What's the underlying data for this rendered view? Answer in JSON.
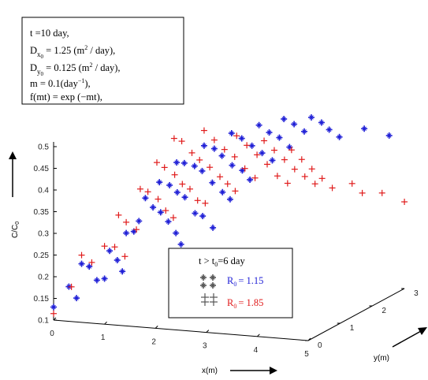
{
  "chart_data": {
    "type": "scatter",
    "projection": "3d",
    "xlabel": "x(m)",
    "ylabel": "y(m)",
    "zlabel": "C/C",
    "zlabel_sub": "0",
    "xlim": [
      0,
      5
    ],
    "ylim": [
      0,
      3
    ],
    "zlim": [
      0.1,
      0.5
    ],
    "xticks": [
      "0",
      "1",
      "2",
      "3",
      "4",
      "5"
    ],
    "yticks": [
      "0",
      "1",
      "2",
      "3"
    ],
    "zticks": [
      "0.1",
      "0.15",
      "0.2",
      "0.25",
      "0.3",
      "0.35",
      "0.4",
      "0.45",
      "0.5"
    ],
    "params": {
      "t": "t =10 day,",
      "dx_pre": "D",
      "dx_sub": "x",
      "dx_sub2": "0",
      "dx_val": " = 1.25  (m",
      "dx_sup": "2",
      "dx_end": " / day),",
      "dy_pre": "D",
      "dy_sub": "y",
      "dy_sub2": "0",
      "dy_val": " = 0.125  (m",
      "dy_sup": "2",
      "dy_end": " / day),",
      "m_pre": "m = 0.1(day",
      "m_sup": "−1",
      "m_end": "),",
      "f": "f(mt) = exp (−mt),"
    },
    "legend": {
      "title": "t > t",
      "title_sub": "0",
      "title_end": "=6 day",
      "entries": [
        {
          "label": "R",
          "sub": "0",
          "value": "= 1.15",
          "color": "#1f1fd6",
          "marker": "star"
        },
        {
          "label": "R",
          "sub": "0",
          "value": "= 1.85",
          "color": "#e01b1b",
          "marker": "plus"
        }
      ]
    },
    "series": [
      {
        "name": "R0 = 1.15",
        "color": "#1f1fd6",
        "marker": "star",
        "points": [
          {
            "x": 0.0,
            "y": 0.0,
            "z": 0.13
          },
          {
            "x": 0.3,
            "y": 0.0,
            "z": 0.18
          },
          {
            "x": 0.45,
            "y": 0.0,
            "z": 0.155
          },
          {
            "x": 0.55,
            "y": 0.0,
            "z": 0.235
          },
          {
            "x": 0.7,
            "y": 0.0,
            "z": 0.23
          },
          {
            "x": 0.85,
            "y": 0.0,
            "z": 0.2
          },
          {
            "x": 1.0,
            "y": 0.0,
            "z": 0.205
          },
          {
            "x": 1.1,
            "y": 0.0,
            "z": 0.27
          },
          {
            "x": 1.25,
            "y": 0.0,
            "z": 0.25
          },
          {
            "x": 1.35,
            "y": 0.0,
            "z": 0.225
          },
          {
            "x": 1.3,
            "y": 0.2,
            "z": 0.305
          },
          {
            "x": 1.45,
            "y": 0.2,
            "z": 0.31
          },
          {
            "x": 1.55,
            "y": 0.2,
            "z": 0.335
          },
          {
            "x": 1.55,
            "y": 0.4,
            "z": 0.38
          },
          {
            "x": 1.7,
            "y": 0.4,
            "z": 0.36
          },
          {
            "x": 1.85,
            "y": 0.4,
            "z": 0.35
          },
          {
            "x": 2.0,
            "y": 0.4,
            "z": 0.33
          },
          {
            "x": 2.15,
            "y": 0.4,
            "z": 0.305
          },
          {
            "x": 2.25,
            "y": 0.4,
            "z": 0.28
          },
          {
            "x": 1.7,
            "y": 0.6,
            "z": 0.41
          },
          {
            "x": 1.9,
            "y": 0.6,
            "z": 0.405
          },
          {
            "x": 2.05,
            "y": 0.6,
            "z": 0.39
          },
          {
            "x": 2.2,
            "y": 0.6,
            "z": 0.38
          },
          {
            "x": 2.4,
            "y": 0.6,
            "z": 0.345
          },
          {
            "x": 2.55,
            "y": 0.6,
            "z": 0.34
          },
          {
            "x": 2.75,
            "y": 0.6,
            "z": 0.315
          },
          {
            "x": 1.85,
            "y": 0.9,
            "z": 0.445
          },
          {
            "x": 2.0,
            "y": 0.9,
            "z": 0.445
          },
          {
            "x": 2.2,
            "y": 0.9,
            "z": 0.44
          },
          {
            "x": 2.35,
            "y": 0.9,
            "z": 0.43
          },
          {
            "x": 2.55,
            "y": 0.9,
            "z": 0.405
          },
          {
            "x": 2.75,
            "y": 0.9,
            "z": 0.385
          },
          {
            "x": 2.9,
            "y": 0.9,
            "z": 0.37
          },
          {
            "x": 2.2,
            "y": 1.2,
            "z": 0.475
          },
          {
            "x": 2.4,
            "y": 1.2,
            "z": 0.47
          },
          {
            "x": 2.55,
            "y": 1.2,
            "z": 0.455
          },
          {
            "x": 2.75,
            "y": 1.2,
            "z": 0.435
          },
          {
            "x": 2.95,
            "y": 1.2,
            "z": 0.425
          },
          {
            "x": 3.1,
            "y": 1.2,
            "z": 0.405
          },
          {
            "x": 2.55,
            "y": 1.5,
            "z": 0.495
          },
          {
            "x": 2.75,
            "y": 1.5,
            "z": 0.485
          },
          {
            "x": 2.95,
            "y": 1.5,
            "z": 0.47
          },
          {
            "x": 3.15,
            "y": 1.5,
            "z": 0.455
          },
          {
            "x": 3.35,
            "y": 1.5,
            "z": 0.44
          },
          {
            "x": 2.9,
            "y": 1.8,
            "z": 0.505
          },
          {
            "x": 3.1,
            "y": 1.8,
            "z": 0.49
          },
          {
            "x": 3.3,
            "y": 1.8,
            "z": 0.48
          },
          {
            "x": 3.5,
            "y": 1.8,
            "z": 0.46
          },
          {
            "x": 3.2,
            "y": 2.1,
            "z": 0.51
          },
          {
            "x": 3.4,
            "y": 2.1,
            "z": 0.5
          },
          {
            "x": 3.6,
            "y": 2.1,
            "z": 0.485
          },
          {
            "x": 3.55,
            "y": 2.4,
            "z": 0.505
          },
          {
            "x": 3.75,
            "y": 2.4,
            "z": 0.495
          },
          {
            "x": 3.9,
            "y": 2.4,
            "z": 0.48
          },
          {
            "x": 4.1,
            "y": 2.4,
            "z": 0.465
          },
          {
            "x": 4.4,
            "y": 2.7,
            "z": 0.475
          },
          {
            "x": 4.7,
            "y": 3.0,
            "z": 0.45
          }
        ]
      },
      {
        "name": "R0 = 1.85",
        "color": "#e01b1b",
        "marker": "plus",
        "points": [
          {
            "x": 0.0,
            "y": 0.0,
            "z": 0.115
          },
          {
            "x": 0.35,
            "y": 0.0,
            "z": 0.18
          },
          {
            "x": 0.55,
            "y": 0.0,
            "z": 0.255
          },
          {
            "x": 0.75,
            "y": 0.0,
            "z": 0.24
          },
          {
            "x": 1.0,
            "y": 0.0,
            "z": 0.28
          },
          {
            "x": 1.2,
            "y": 0.0,
            "z": 0.28
          },
          {
            "x": 1.4,
            "y": 0.0,
            "z": 0.26
          },
          {
            "x": 1.15,
            "y": 0.2,
            "z": 0.345
          },
          {
            "x": 1.3,
            "y": 0.2,
            "z": 0.33
          },
          {
            "x": 1.5,
            "y": 0.2,
            "z": 0.315
          },
          {
            "x": 1.45,
            "y": 0.4,
            "z": 0.4
          },
          {
            "x": 1.6,
            "y": 0.4,
            "z": 0.395
          },
          {
            "x": 1.8,
            "y": 0.4,
            "z": 0.38
          },
          {
            "x": 1.95,
            "y": 0.4,
            "z": 0.355
          },
          {
            "x": 2.1,
            "y": 0.4,
            "z": 0.34
          },
          {
            "x": 1.65,
            "y": 0.6,
            "z": 0.455
          },
          {
            "x": 1.8,
            "y": 0.6,
            "z": 0.445
          },
          {
            "x": 2.0,
            "y": 0.6,
            "z": 0.43
          },
          {
            "x": 2.15,
            "y": 0.6,
            "z": 0.41
          },
          {
            "x": 2.3,
            "y": 0.6,
            "z": 0.4
          },
          {
            "x": 2.45,
            "y": 0.6,
            "z": 0.375
          },
          {
            "x": 2.6,
            "y": 0.6,
            "z": 0.37
          },
          {
            "x": 1.8,
            "y": 0.9,
            "z": 0.5
          },
          {
            "x": 1.95,
            "y": 0.9,
            "z": 0.495
          },
          {
            "x": 2.15,
            "y": 0.9,
            "z": 0.47
          },
          {
            "x": 2.3,
            "y": 0.9,
            "z": 0.455
          },
          {
            "x": 2.5,
            "y": 0.9,
            "z": 0.44
          },
          {
            "x": 2.7,
            "y": 0.9,
            "z": 0.42
          },
          {
            "x": 2.85,
            "y": 0.9,
            "z": 0.405
          },
          {
            "x": 3.0,
            "y": 0.9,
            "z": 0.39
          },
          {
            "x": 2.2,
            "y": 1.2,
            "z": 0.51
          },
          {
            "x": 2.4,
            "y": 1.2,
            "z": 0.49
          },
          {
            "x": 2.6,
            "y": 1.2,
            "z": 0.47
          },
          {
            "x": 2.8,
            "y": 1.2,
            "z": 0.455
          },
          {
            "x": 3.0,
            "y": 1.2,
            "z": 0.43
          },
          {
            "x": 3.2,
            "y": 1.2,
            "z": 0.41
          },
          {
            "x": 2.65,
            "y": 1.5,
            "z": 0.49
          },
          {
            "x": 2.85,
            "y": 1.5,
            "z": 0.47
          },
          {
            "x": 3.05,
            "y": 1.5,
            "z": 0.45
          },
          {
            "x": 3.25,
            "y": 1.5,
            "z": 0.43
          },
          {
            "x": 3.45,
            "y": 1.5,
            "z": 0.405
          },
          {
            "x": 3.65,
            "y": 1.5,
            "z": 0.39
          },
          {
            "x": 3.0,
            "y": 1.8,
            "z": 0.47
          },
          {
            "x": 3.2,
            "y": 1.8,
            "z": 0.45
          },
          {
            "x": 3.4,
            "y": 1.8,
            "z": 0.43
          },
          {
            "x": 3.6,
            "y": 1.8,
            "z": 0.41
          },
          {
            "x": 3.8,
            "y": 1.8,
            "z": 0.395
          },
          {
            "x": 4.0,
            "y": 1.8,
            "z": 0.38
          },
          {
            "x": 3.35,
            "y": 2.1,
            "z": 0.44
          },
          {
            "x": 3.55,
            "y": 2.1,
            "z": 0.42
          },
          {
            "x": 3.75,
            "y": 2.1,
            "z": 0.4
          },
          {
            "x": 3.95,
            "y": 2.1,
            "z": 0.38
          },
          {
            "x": 4.15,
            "y": 2.1,
            "z": 0.36
          },
          {
            "x": 4.35,
            "y": 2.4,
            "z": 0.36
          },
          {
            "x": 4.55,
            "y": 2.4,
            "z": 0.34
          },
          {
            "x": 4.75,
            "y": 2.7,
            "z": 0.33
          },
          {
            "x": 5.0,
            "y": 3.0,
            "z": 0.3
          }
        ]
      }
    ]
  }
}
